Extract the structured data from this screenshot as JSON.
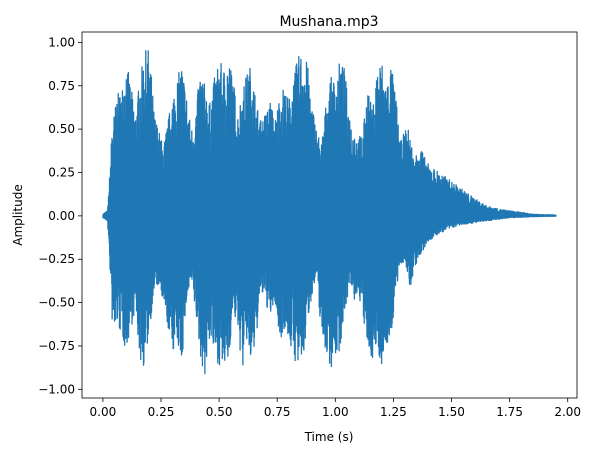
{
  "chart_data": {
    "type": "line",
    "title": "Mushana.mp3",
    "xlabel": "Time (s)",
    "ylabel": "Amplitude",
    "xlim": [
      -0.09,
      2.04
    ],
    "ylim": [
      -1.05,
      1.06
    ],
    "x_ticks": [
      0.0,
      0.25,
      0.5,
      0.75,
      1.0,
      1.25,
      1.5,
      1.75,
      2.0
    ],
    "x_tick_labels": [
      "0.00",
      "0.25",
      "0.50",
      "0.75",
      "1.00",
      "1.25",
      "1.50",
      "1.75",
      "2.00"
    ],
    "y_ticks": [
      1.0,
      0.75,
      0.5,
      0.25,
      0.0,
      -0.25,
      -0.5,
      -0.75,
      -1.0
    ],
    "y_tick_labels": [
      "1.00",
      "0.75",
      "0.50",
      "0.25",
      "0.00",
      "−0.25",
      "−0.50",
      "−0.75",
      "−1.00"
    ],
    "grid": false,
    "series": [
      {
        "color": "#1f77b4",
        "envelope": {
          "t": [
            0.0,
            0.02,
            0.03,
            0.04,
            0.05,
            0.06,
            0.08,
            0.1,
            0.12,
            0.14,
            0.16,
            0.18,
            0.2,
            0.22,
            0.24,
            0.26,
            0.28,
            0.3,
            0.32,
            0.34,
            0.36,
            0.38,
            0.4,
            0.42,
            0.44,
            0.46,
            0.48,
            0.5,
            0.52,
            0.54,
            0.56,
            0.58,
            0.6,
            0.62,
            0.64,
            0.66,
            0.68,
            0.7,
            0.72,
            0.74,
            0.76,
            0.78,
            0.8,
            0.82,
            0.84,
            0.86,
            0.88,
            0.9,
            0.92,
            0.94,
            0.96,
            0.98,
            1.0,
            1.02,
            1.04,
            1.06,
            1.08,
            1.1,
            1.12,
            1.14,
            1.16,
            1.18,
            1.2,
            1.22,
            1.24,
            1.26,
            1.28,
            1.3,
            1.32,
            1.34,
            1.36,
            1.38,
            1.4,
            1.45,
            1.5,
            1.55,
            1.6,
            1.65,
            1.7,
            1.75,
            1.8,
            1.85,
            1.9,
            1.95
          ],
          "upper": [
            0.01,
            0.03,
            0.25,
            0.55,
            0.6,
            0.7,
            0.72,
            0.9,
            0.75,
            0.6,
            0.8,
            0.95,
            0.97,
            0.6,
            0.5,
            0.4,
            0.55,
            0.7,
            0.8,
            0.88,
            0.7,
            0.5,
            0.62,
            0.85,
            0.75,
            0.65,
            0.8,
            0.9,
            0.85,
            0.93,
            0.8,
            0.6,
            0.72,
            0.83,
            0.88,
            0.65,
            0.55,
            0.6,
            0.67,
            0.55,
            0.7,
            0.75,
            0.67,
            0.8,
            0.92,
            0.96,
            0.88,
            0.65,
            0.5,
            0.42,
            0.65,
            0.8,
            0.78,
            0.9,
            0.85,
            0.6,
            0.5,
            0.45,
            0.5,
            0.75,
            0.6,
            0.87,
            0.9,
            0.76,
            0.88,
            0.7,
            0.42,
            0.5,
            0.5,
            0.3,
            0.45,
            0.35,
            0.3,
            0.25,
            0.2,
            0.15,
            0.1,
            0.06,
            0.04,
            0.03,
            0.02,
            0.01,
            0.008,
            0.005
          ],
          "lower": [
            -0.01,
            -0.03,
            -0.3,
            -0.62,
            -0.72,
            -0.62,
            -0.7,
            -0.78,
            -0.65,
            -0.55,
            -0.84,
            -0.88,
            -0.66,
            -0.45,
            -0.4,
            -0.55,
            -0.65,
            -0.78,
            -0.75,
            -0.85,
            -0.5,
            -0.4,
            -0.58,
            -0.82,
            -0.94,
            -0.7,
            -0.82,
            -0.86,
            -0.9,
            -0.85,
            -0.55,
            -0.66,
            -0.9,
            -0.72,
            -0.9,
            -0.7,
            -0.45,
            -0.5,
            -0.6,
            -0.5,
            -0.73,
            -0.65,
            -0.72,
            -0.82,
            -0.88,
            -0.86,
            -0.62,
            -0.45,
            -0.38,
            -0.68,
            -0.79,
            -0.88,
            -0.82,
            -0.78,
            -0.55,
            -0.42,
            -0.5,
            -0.45,
            -0.6,
            -0.81,
            -0.82,
            -0.78,
            -0.86,
            -0.76,
            -0.7,
            -0.46,
            -0.3,
            -0.25,
            -0.45,
            -0.3,
            -0.25,
            -0.2,
            -0.15,
            -0.1,
            -0.07,
            -0.05,
            -0.04,
            -0.03,
            -0.02,
            -0.01,
            -0.008,
            -0.005,
            -0.003,
            -0.002
          ]
        }
      }
    ]
  }
}
